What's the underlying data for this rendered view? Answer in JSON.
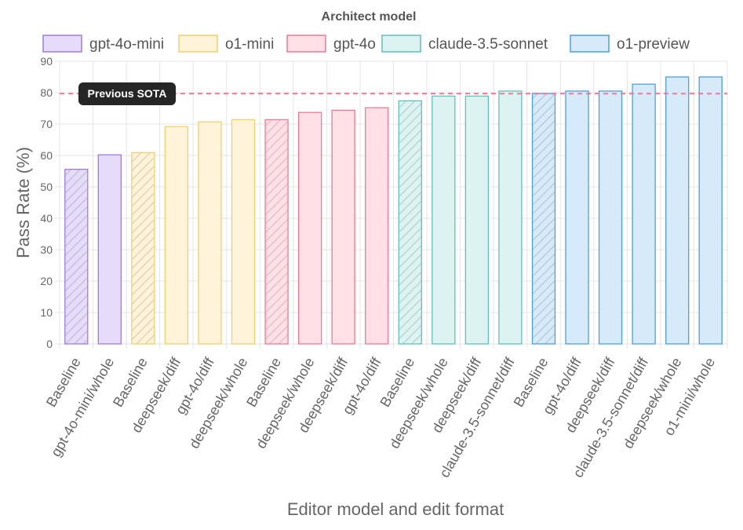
{
  "chart_data": {
    "type": "bar",
    "legend_title": "Architect model",
    "legend_position": "top",
    "xlabel": "Editor model and edit format",
    "ylabel": "Pass Rate (%)",
    "ylim": [
      0,
      90
    ],
    "yticks": [
      0,
      10,
      20,
      30,
      40,
      50,
      60,
      70,
      80,
      90
    ],
    "grid": true,
    "groups": [
      {
        "name": "gpt-4o-mini",
        "fill": "#e6dcfa",
        "stroke": "#9c7ce6"
      },
      {
        "name": "o1-mini",
        "fill": "#fff4d9",
        "stroke": "#f2cf6b"
      },
      {
        "name": "gpt-4o",
        "fill": "#ffe0e6",
        "stroke": "#f07894"
      },
      {
        "name": "claude-3.5-sonnet",
        "fill": "#dcf3f2",
        "stroke": "#5fc2bb"
      },
      {
        "name": "o1-preview",
        "fill": "#d7eafa",
        "stroke": "#4aa0e0"
      }
    ],
    "bars": [
      {
        "label": "Baseline",
        "value": 55.6,
        "group": 0,
        "hatched": true
      },
      {
        "label": "gpt-4o-mini/whole",
        "value": 60.2,
        "group": 0,
        "hatched": false
      },
      {
        "label": "Baseline",
        "value": 60.9,
        "group": 1,
        "hatched": true
      },
      {
        "label": "deepseek/diff",
        "value": 69.2,
        "group": 1,
        "hatched": false
      },
      {
        "label": "gpt-4o/diff",
        "value": 70.7,
        "group": 1,
        "hatched": false
      },
      {
        "label": "deepseek/whole",
        "value": 71.4,
        "group": 1,
        "hatched": false
      },
      {
        "label": "Baseline",
        "value": 71.4,
        "group": 2,
        "hatched": true
      },
      {
        "label": "deepseek/whole",
        "value": 73.7,
        "group": 2,
        "hatched": false
      },
      {
        "label": "deepseek/diff",
        "value": 74.4,
        "group": 2,
        "hatched": false
      },
      {
        "label": "gpt-4o/diff",
        "value": 75.2,
        "group": 2,
        "hatched": false
      },
      {
        "label": "Baseline",
        "value": 77.4,
        "group": 3,
        "hatched": true
      },
      {
        "label": "deepseek/whole",
        "value": 78.9,
        "group": 3,
        "hatched": false
      },
      {
        "label": "deepseek/diff",
        "value": 78.9,
        "group": 3,
        "hatched": false
      },
      {
        "label": "claude-3.5-sonnet/diff",
        "value": 80.5,
        "group": 3,
        "hatched": false
      },
      {
        "label": "Baseline",
        "value": 79.7,
        "group": 4,
        "hatched": true
      },
      {
        "label": "gpt-4o/diff",
        "value": 80.5,
        "group": 4,
        "hatched": false
      },
      {
        "label": "deepseek/diff",
        "value": 80.5,
        "group": 4,
        "hatched": false
      },
      {
        "label": "claude-3.5-sonnet/diff",
        "value": 82.7,
        "group": 4,
        "hatched": false
      },
      {
        "label": "deepseek/whole",
        "value": 85.0,
        "group": 4,
        "hatched": false
      },
      {
        "label": "o1-mini/whole",
        "value": 85.0,
        "group": 4,
        "hatched": false
      }
    ],
    "reference_line": {
      "label": "Previous SOTA",
      "value": 79.7,
      "color": "#f07894"
    }
  }
}
